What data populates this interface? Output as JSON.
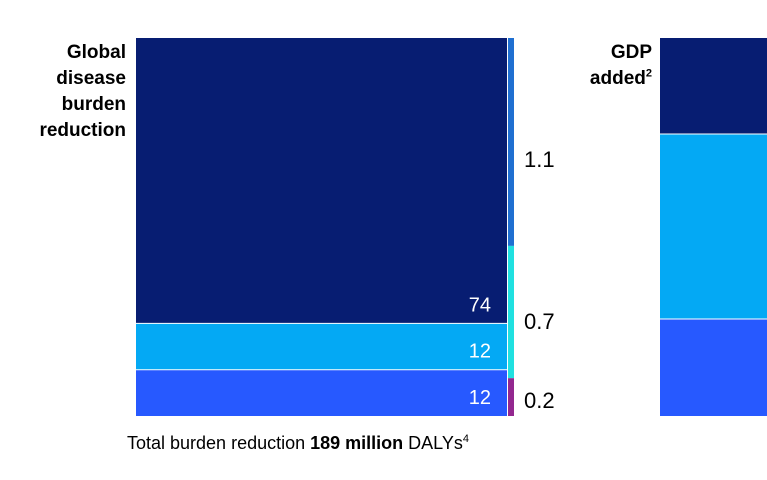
{
  "chart_data": {
    "type": "bar",
    "stacked": true,
    "panels": [
      {
        "title": "Global disease burden reduction",
        "title_lines": [
          "Global",
          "disease",
          "burden",
          "reduction"
        ],
        "main_stack": {
          "values": [
            74,
            12,
            12
          ],
          "labels": [
            "74",
            "12",
            "12"
          ],
          "colors": [
            "#071d72",
            "#04a9f4",
            "#2759ff"
          ]
        },
        "side_stack": {
          "values": [
            1.1,
            0.7,
            0.2
          ],
          "labels": [
            "1.1",
            "0.7",
            "0.2"
          ],
          "colors": [
            "#1f6fd1",
            "#20e0e0",
            "#93278f"
          ]
        }
      },
      {
        "title": "GDP added",
        "title_lines": [
          "GDP",
          "added"
        ],
        "title_sup": "2",
        "main_stack": {
          "colors": [
            "#071d72",
            "#04a9f4",
            "#2759ff"
          ]
        }
      }
    ]
  },
  "footnote": {
    "prefix": "Total burden reduction ",
    "bold": "189 million",
    "suffix": " DALYs",
    "sup": "4"
  }
}
